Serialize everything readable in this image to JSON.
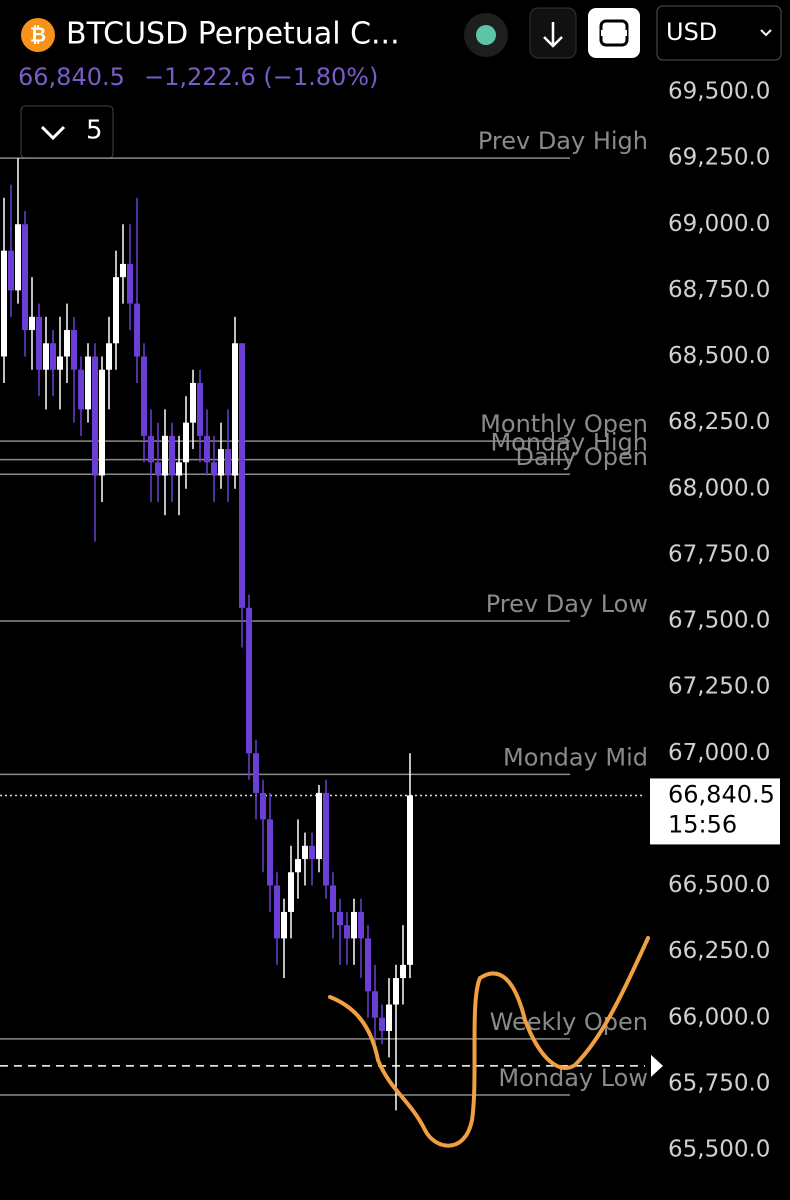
{
  "header": {
    "title": "BTCUSD Perpetual C...",
    "price": "66,840.5",
    "change": "−1,222.6 (−1.80%)",
    "interval": "5",
    "currency": "USD"
  },
  "chart_data": {
    "type": "candlestick",
    "up_color": "#ffffff",
    "down_color": "#6b3fd4",
    "open": [
      68500,
      68900,
      68750,
      69000,
      68600,
      68650,
      68450,
      68550,
      68450,
      68500,
      68600,
      68450,
      68300,
      68500,
      68050,
      68450,
      68550,
      68800,
      68850,
      68700,
      68500,
      68200,
      68100,
      68050,
      68200,
      68050,
      68100,
      68250,
      68400,
      68200,
      68100,
      68050,
      68150,
      68050,
      68550,
      67550,
      67000,
      66850,
      66750,
      66500,
      66300,
      66400,
      66550,
      66600,
      66650,
      66600,
      66850,
      66500,
      66400,
      66350,
      66300,
      66400,
      66300,
      66100,
      66000,
      65950,
      66050,
      66150,
      66200
    ],
    "high": [
      69100,
      69150,
      69250,
      69050,
      68800,
      68700,
      68650,
      68600,
      68650,
      68700,
      68650,
      68500,
      68550,
      68550,
      68500,
      68650,
      68900,
      69000,
      69000,
      69100,
      68550,
      68300,
      68250,
      68300,
      68250,
      68200,
      68350,
      68450,
      68450,
      68300,
      68200,
      68250,
      68300,
      68650,
      68550,
      67600,
      67050,
      66900,
      66850,
      66550,
      66450,
      66650,
      66750,
      66700,
      66700,
      66880,
      66900,
      66550,
      66450,
      66400,
      66450,
      66450,
      66350,
      66200,
      66050,
      66150,
      66200,
      66350,
      67000
    ],
    "low": [
      68400,
      68650,
      68700,
      68500,
      68450,
      68350,
      68300,
      68350,
      68300,
      68400,
      68250,
      68200,
      68250,
      67800,
      67950,
      68300,
      68450,
      68700,
      68600,
      68400,
      68100,
      67950,
      67950,
      67900,
      67950,
      67900,
      68000,
      68150,
      68100,
      68050,
      67950,
      68000,
      67950,
      68000,
      67400,
      66900,
      66750,
      66550,
      66400,
      66200,
      66150,
      66300,
      66450,
      66500,
      66500,
      66550,
      66450,
      66300,
      66200,
      66200,
      66200,
      66150,
      66000,
      65900,
      65900,
      65850,
      65650,
      66050,
      66150
    ],
    "close": [
      68900,
      68750,
      69000,
      68600,
      68650,
      68450,
      68550,
      68450,
      68500,
      68600,
      68450,
      68300,
      68500,
      68050,
      68450,
      68550,
      68800,
      68850,
      68700,
      68500,
      68200,
      68100,
      68050,
      68200,
      68050,
      68100,
      68250,
      68400,
      68200,
      68100,
      68050,
      68150,
      68050,
      68550,
      67550,
      67000,
      66850,
      66750,
      66500,
      66300,
      66400,
      66550,
      66600,
      66650,
      66600,
      66850,
      66500,
      66400,
      66350,
      66300,
      66400,
      66300,
      66100,
      66000,
      65950,
      66050,
      66150,
      66200,
      66840.5
    ],
    "ylim": [
      65500,
      69500
    ],
    "yticks": [
      {
        "value": 65500,
        "label": "65,500.0"
      },
      {
        "value": 65750,
        "label": "65,750.0"
      },
      {
        "value": 66000,
        "label": "66,000.0"
      },
      {
        "value": 66250,
        "label": "66,250.0"
      },
      {
        "value": 66500,
        "label": "66,500.0"
      },
      {
        "value": 66750,
        "label": "66,750.0"
      },
      {
        "value": 67000,
        "label": "67,000.0"
      },
      {
        "value": 67250,
        "label": "67,250.0"
      },
      {
        "value": 67500,
        "label": "67,500.0"
      },
      {
        "value": 67750,
        "label": "67,750.0"
      },
      {
        "value": 68000,
        "label": "68,000.0"
      },
      {
        "value": 68250,
        "label": "68,250.0"
      },
      {
        "value": 68500,
        "label": "68,500.0"
      },
      {
        "value": 68750,
        "label": "68,750.0"
      },
      {
        "value": 69000,
        "label": "69,000.0"
      },
      {
        "value": 69250,
        "label": "69,250.0"
      },
      {
        "value": 69500,
        "label": "69,500.0"
      }
    ],
    "levels": [
      {
        "name": "Prev Day High",
        "value": 69250
      },
      {
        "name": "Monthly Open",
        "value": 68180
      },
      {
        "name": "Monday High",
        "value": 68110
      },
      {
        "name": "Daily Open",
        "value": 68055
      },
      {
        "name": "Prev Day Low",
        "value": 67500
      },
      {
        "name": "Monday Mid",
        "value": 66920
      },
      {
        "name": "Weekly Open",
        "value": 65920
      },
      {
        "name": "Monday Low",
        "value": 65708
      }
    ],
    "alert_level": 65818,
    "last_price": {
      "value": 66840.5,
      "label": "66,840.5",
      "countdown": "15:56"
    }
  }
}
